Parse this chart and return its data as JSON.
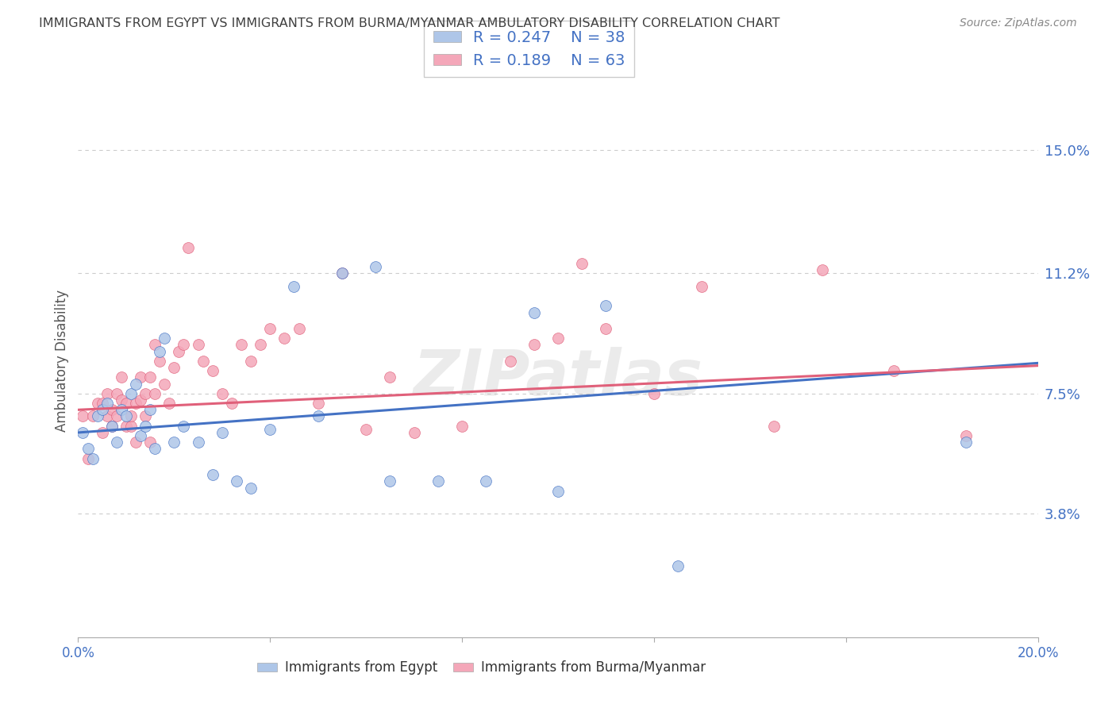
{
  "title": "IMMIGRANTS FROM EGYPT VS IMMIGRANTS FROM BURMA/MYANMAR AMBULATORY DISABILITY CORRELATION CHART",
  "source": "Source: ZipAtlas.com",
  "ylabel": "Ambulatory Disability",
  "xlim": [
    0.0,
    0.2
  ],
  "ylim": [
    0.0,
    0.17
  ],
  "yticks": [
    0.038,
    0.075,
    0.112,
    0.15
  ],
  "ytick_labels": [
    "3.8%",
    "7.5%",
    "11.2%",
    "15.0%"
  ],
  "xticks": [
    0.0,
    0.04,
    0.08,
    0.12,
    0.16,
    0.2
  ],
  "xtick_labels": [
    "0.0%",
    "",
    "",
    "",
    "",
    "20.0%"
  ],
  "egypt_color": "#aec6e8",
  "burma_color": "#f4a7b9",
  "egypt_line_color": "#4472c4",
  "burma_line_color": "#e0607a",
  "egypt_R": 0.247,
  "egypt_N": 38,
  "burma_R": 0.189,
  "burma_N": 63,
  "egypt_intercept": 0.063,
  "egypt_slope": 0.107,
  "burma_intercept": 0.07,
  "burma_slope": 0.068,
  "egypt_x": [
    0.001,
    0.002,
    0.003,
    0.004,
    0.005,
    0.006,
    0.007,
    0.008,
    0.009,
    0.01,
    0.011,
    0.012,
    0.013,
    0.014,
    0.015,
    0.016,
    0.017,
    0.018,
    0.02,
    0.022,
    0.025,
    0.028,
    0.03,
    0.033,
    0.036,
    0.04,
    0.045,
    0.05,
    0.055,
    0.062,
    0.065,
    0.075,
    0.085,
    0.095,
    0.1,
    0.11,
    0.125,
    0.185
  ],
  "egypt_y": [
    0.063,
    0.058,
    0.055,
    0.068,
    0.07,
    0.072,
    0.065,
    0.06,
    0.07,
    0.068,
    0.075,
    0.078,
    0.062,
    0.065,
    0.07,
    0.058,
    0.088,
    0.092,
    0.06,
    0.065,
    0.06,
    0.05,
    0.063,
    0.048,
    0.046,
    0.064,
    0.108,
    0.068,
    0.112,
    0.114,
    0.048,
    0.048,
    0.048,
    0.1,
    0.045,
    0.102,
    0.022,
    0.06
  ],
  "burma_x": [
    0.001,
    0.002,
    0.003,
    0.004,
    0.005,
    0.005,
    0.006,
    0.006,
    0.007,
    0.007,
    0.008,
    0.008,
    0.009,
    0.009,
    0.01,
    0.01,
    0.011,
    0.011,
    0.012,
    0.012,
    0.013,
    0.013,
    0.014,
    0.014,
    0.015,
    0.015,
    0.016,
    0.016,
    0.017,
    0.018,
    0.019,
    0.02,
    0.021,
    0.022,
    0.023,
    0.025,
    0.026,
    0.028,
    0.03,
    0.032,
    0.034,
    0.036,
    0.038,
    0.04,
    0.043,
    0.046,
    0.05,
    0.055,
    0.06,
    0.065,
    0.07,
    0.08,
    0.09,
    0.095,
    0.1,
    0.105,
    0.11,
    0.12,
    0.13,
    0.145,
    0.155,
    0.17,
    0.185
  ],
  "burma_y": [
    0.068,
    0.055,
    0.068,
    0.072,
    0.063,
    0.072,
    0.075,
    0.068,
    0.065,
    0.07,
    0.068,
    0.075,
    0.073,
    0.08,
    0.065,
    0.072,
    0.065,
    0.068,
    0.06,
    0.072,
    0.073,
    0.08,
    0.075,
    0.068,
    0.06,
    0.08,
    0.075,
    0.09,
    0.085,
    0.078,
    0.072,
    0.083,
    0.088,
    0.09,
    0.12,
    0.09,
    0.085,
    0.082,
    0.075,
    0.072,
    0.09,
    0.085,
    0.09,
    0.095,
    0.092,
    0.095,
    0.072,
    0.112,
    0.064,
    0.08,
    0.063,
    0.065,
    0.085,
    0.09,
    0.092,
    0.115,
    0.095,
    0.075,
    0.108,
    0.065,
    0.113,
    0.082,
    0.062
  ],
  "background_color": "#ffffff",
  "grid_color": "#cccccc",
  "axis_label_color": "#4472c4",
  "title_color": "#404040",
  "watermark_text": "ZIPatlas",
  "watermark_color": "#c8c8c8"
}
